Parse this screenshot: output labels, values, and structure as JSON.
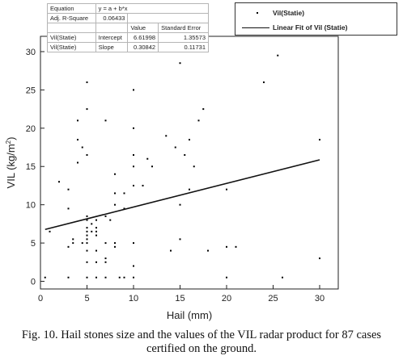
{
  "chart_data": {
    "type": "scatter",
    "xlabel": "Hail (mm)",
    "ylabel_main": "VIL (kg/m",
    "ylabel_sup": "2",
    "ylabel_end": ")",
    "xlim": [
      0,
      32
    ],
    "ylim": [
      -1,
      32
    ],
    "x_ticks": [
      0,
      5,
      10,
      15,
      20,
      25,
      30
    ],
    "y_ticks": [
      0,
      5,
      10,
      15,
      20,
      25,
      30
    ],
    "grid": false,
    "legend": {
      "position": "top-right",
      "entries": [
        {
          "label": "Vil(Statie)",
          "marker": "point"
        },
        {
          "label": "Linear Fit of Vil (Statie)",
          "marker": "line"
        }
      ]
    },
    "fit_line": {
      "intercept": 6.61998,
      "slope": 0.30842,
      "x_range": [
        0.5,
        30
      ]
    },
    "series": [
      {
        "name": "Vil(Statie)",
        "points": [
          [
            0.5,
            0.5
          ],
          [
            1,
            6.5
          ],
          [
            2,
            13
          ],
          [
            3,
            12
          ],
          [
            3,
            9.5
          ],
          [
            3,
            4.5
          ],
          [
            3,
            0.5
          ],
          [
            3.5,
            5.5
          ],
          [
            3.5,
            5
          ],
          [
            4,
            21
          ],
          [
            4,
            18.5
          ],
          [
            4,
            15.5
          ],
          [
            4.5,
            17.5
          ],
          [
            4.5,
            5
          ],
          [
            5,
            26
          ],
          [
            5,
            22.5
          ],
          [
            5,
            16.5
          ],
          [
            5,
            8.5
          ],
          [
            5,
            8
          ],
          [
            5,
            7
          ],
          [
            5,
            6.5
          ],
          [
            5,
            6
          ],
          [
            5,
            5.5
          ],
          [
            5,
            5
          ],
          [
            5,
            4
          ],
          [
            5,
            2.5
          ],
          [
            5,
            0.5
          ],
          [
            5.5,
            7.5
          ],
          [
            5.5,
            6.5
          ],
          [
            6,
            8
          ],
          [
            6,
            7
          ],
          [
            6,
            6.5
          ],
          [
            6,
            6
          ],
          [
            6,
            4
          ],
          [
            6,
            2.5
          ],
          [
            6,
            0.5
          ],
          [
            7,
            21
          ],
          [
            7,
            8.5
          ],
          [
            7,
            5
          ],
          [
            7,
            3
          ],
          [
            7,
            2.5
          ],
          [
            7,
            0.5
          ],
          [
            7.5,
            8
          ],
          [
            8,
            14
          ],
          [
            8,
            11.5
          ],
          [
            8,
            10
          ],
          [
            8,
            5
          ],
          [
            8,
            4.5
          ],
          [
            8.5,
            0.5
          ],
          [
            9,
            11.5
          ],
          [
            9,
            9.5
          ],
          [
            9,
            0.5
          ],
          [
            10,
            25
          ],
          [
            10,
            20
          ],
          [
            10,
            16.5
          ],
          [
            10,
            15
          ],
          [
            10,
            12.5
          ],
          [
            10,
            5
          ],
          [
            10,
            2
          ],
          [
            10,
            0.5
          ],
          [
            11,
            12.5
          ],
          [
            11.5,
            16
          ],
          [
            12,
            15
          ],
          [
            13.5,
            19
          ],
          [
            14,
            4
          ],
          [
            14.5,
            17.5
          ],
          [
            15,
            28.5
          ],
          [
            15,
            10
          ],
          [
            15,
            5.5
          ],
          [
            15.5,
            16.5
          ],
          [
            16,
            18.5
          ],
          [
            16,
            12
          ],
          [
            16.5,
            15
          ],
          [
            17,
            21
          ],
          [
            17.5,
            22.5
          ],
          [
            18,
            4
          ],
          [
            20,
            12
          ],
          [
            20,
            4.5
          ],
          [
            20,
            0.5
          ],
          [
            21,
            4.5
          ],
          [
            24,
            26
          ],
          [
            25.5,
            29.5
          ],
          [
            26,
            0.5
          ],
          [
            30,
            18.5
          ],
          [
            30,
            3
          ]
        ]
      }
    ]
  },
  "stats_table": {
    "rows": [
      [
        "Equation",
        "y = a + b*x",
        "",
        ""
      ],
      [
        "Adj. R-Square",
        "0.06433",
        "",
        ""
      ],
      [
        "",
        "",
        "Value",
        "Standard Error"
      ],
      [
        "Vil(Statie)",
        "Intercept",
        "6.61998",
        "1.35573"
      ],
      [
        "Vil(Statie)",
        "Slope",
        "0.30842",
        "0.11731"
      ]
    ]
  },
  "caption": {
    "line1": "Fig. 10. Hail stones size and the values of the VIL radar product for 87 cases",
    "line2": "certified on the ground."
  }
}
